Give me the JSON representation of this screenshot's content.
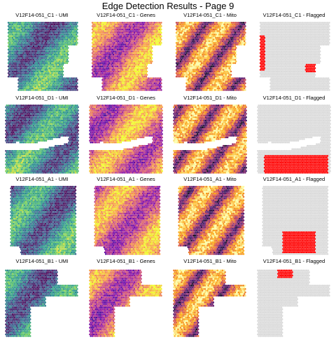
{
  "title": "Edge Detection Results - Page 9",
  "colors": {
    "flagged": "#ff0000",
    "unflagged": "#d9d9d9",
    "background": "#ffffff"
  },
  "rows": [
    {
      "sample": "V12F14-051_C1",
      "panels": [
        {
          "label": "V12F14-051_C1 - UMI",
          "colormap": "viridis"
        },
        {
          "label": "V12F14-051_C1 - Genes",
          "colormap": "plasma"
        },
        {
          "label": "V12F14-051_C1 - Mito",
          "colormap": "inferno"
        },
        {
          "label": "V12F14-051_C1 - Flagged",
          "colormap": "flagged"
        }
      ]
    },
    {
      "sample": "V12F14-051_D1",
      "panels": [
        {
          "label": "V12F14-051_D1 - UMI",
          "colormap": "viridis"
        },
        {
          "label": "V12F14-051_D1 - Genes",
          "colormap": "plasma"
        },
        {
          "label": "V12F14-051_D1 - Mito",
          "colormap": "inferno"
        },
        {
          "label": "V12F14-051_D1 - Flagged",
          "colormap": "flagged"
        }
      ]
    },
    {
      "sample": "V12F14-051_A1",
      "panels": [
        {
          "label": "V12F14-051_A1 - UMI",
          "colormap": "viridis"
        },
        {
          "label": "V12F14-051_A1 - Genes",
          "colormap": "plasma"
        },
        {
          "label": "V12F14-051_A1 - Mito",
          "colormap": "inferno"
        },
        {
          "label": "V12F14-051_A1 - Flagged",
          "colormap": "flagged"
        }
      ]
    },
    {
      "sample": "V12F14-051_B1",
      "panels": [
        {
          "label": "V12F14-051_B1 - UMI",
          "colormap": "viridis"
        },
        {
          "label": "V12F14-051_B1 - Genes",
          "colormap": "plasma"
        },
        {
          "label": "V12F14-051_B1 - Mito",
          "colormap": "inferno"
        },
        {
          "label": "V12F14-051_B1 - Flagged",
          "colormap": "flagged"
        }
      ]
    }
  ]
}
